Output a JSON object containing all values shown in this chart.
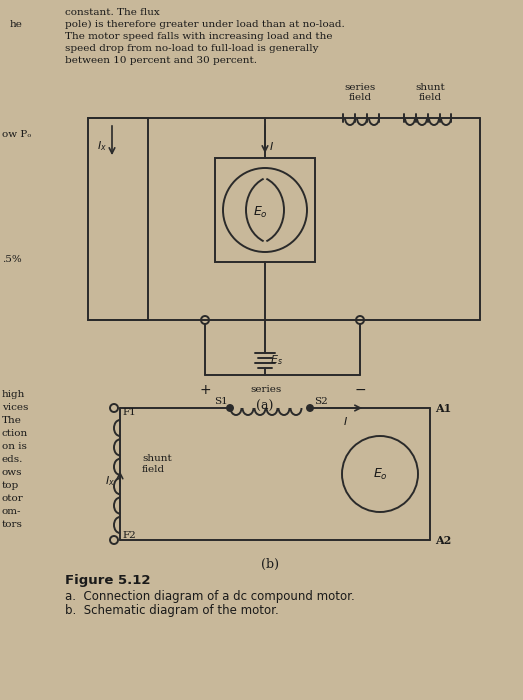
{
  "bg_color": "#c8b89a",
  "text_color": "#1a1a1a",
  "lc": "#2a2a2a",
  "lw": 1.4,
  "header_lines": [
    [
      "constant. The flux",
      65,
      8
    ],
    [
      "pole) is therefore greater under load than at no-load.",
      65,
      20
    ],
    [
      "The motor speed falls with increasing load and the",
      65,
      32
    ],
    [
      "speed drop from no-load to full-load is generally",
      65,
      44
    ],
    [
      "between 10 percent and 30 percent.",
      65,
      56
    ]
  ],
  "left_margin": [
    [
      "he",
      10,
      20
    ],
    [
      "ow Pₒ",
      2,
      130
    ],
    [
      ".5%",
      2,
      255
    ],
    [
      "high",
      2,
      390
    ],
    [
      "vices",
      2,
      403
    ],
    [
      "The",
      2,
      416
    ],
    [
      "ction",
      2,
      429
    ],
    [
      "on is",
      2,
      442
    ],
    [
      "eds.",
      2,
      455
    ],
    [
      "ows",
      2,
      468
    ],
    [
      "top",
      2,
      481
    ],
    [
      "otor",
      2,
      494
    ],
    [
      "om-",
      2,
      507
    ],
    [
      "tors",
      2,
      520
    ]
  ]
}
